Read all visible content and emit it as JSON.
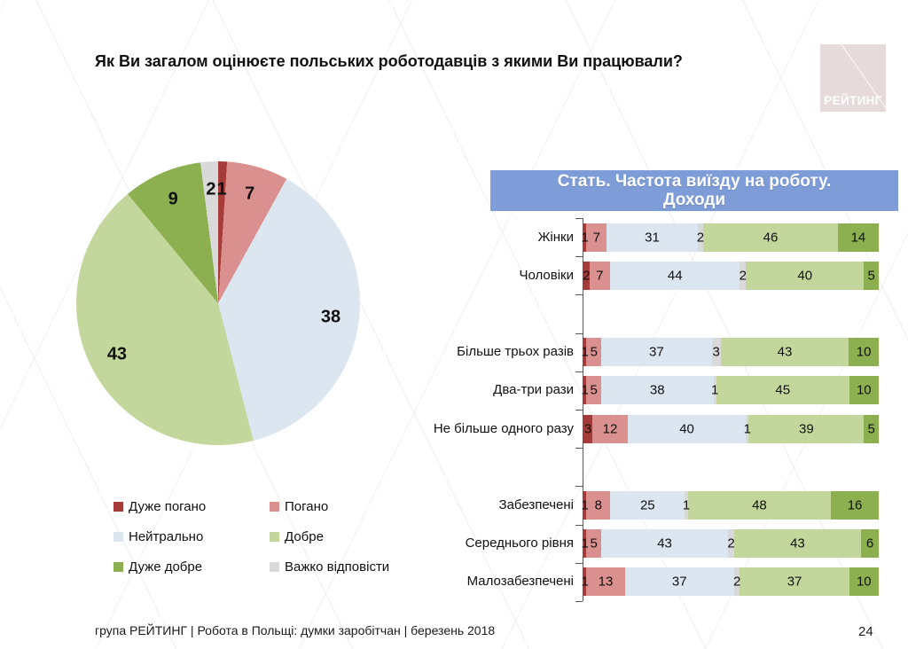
{
  "slide": {
    "title": "Як Ви загалом оцінюєте польських роботодавців з якими Ви працювали?",
    "footer": "група РЕЙТИНГ | Робота в Польщі: думки заробітчан | березень 2018",
    "page_number": "24",
    "logo_text": "РЕЙТИНГ"
  },
  "colors": {
    "very_bad": "#A53C3A",
    "bad": "#D9908E",
    "neutral": "#DCE6F1",
    "good": "#C3D69B",
    "very_good": "#8CB04F",
    "hard_to_say": "#D9D9D9",
    "header_bg": "#7E9DD8",
    "logo_bg": "#E7DADA",
    "axis": "#595959"
  },
  "section_header": {
    "line1": "Стать. Частота виїзду на роботу.",
    "line2": "Доходи"
  },
  "legend": [
    {
      "label": "Дуже погано",
      "color_key": "very_bad"
    },
    {
      "label": "Погано",
      "color_key": "bad"
    },
    {
      "label": "Нейтрально",
      "color_key": "neutral"
    },
    {
      "label": "Добре",
      "color_key": "good"
    },
    {
      "label": "Дуже добре",
      "color_key": "very_good"
    },
    {
      "label": "Важко відповісти",
      "color_key": "hard_to_say"
    }
  ],
  "chart_data": [
    {
      "type": "pie",
      "title": "Як Ви загалом оцінюєте польських роботодавців з якими Ви працювали?",
      "start_angle_deg": 0,
      "direction": "clockwise",
      "slices": [
        {
          "label": "Дуже погано",
          "value": 1,
          "color_key": "very_bad"
        },
        {
          "label": "Погано",
          "value": 7,
          "color_key": "bad"
        },
        {
          "label": "Нейтрально",
          "value": 38,
          "color_key": "neutral"
        },
        {
          "label": "Добре",
          "value": 43,
          "color_key": "good"
        },
        {
          "label": "Дуже добре",
          "value": 9,
          "color_key": "very_good"
        },
        {
          "label": "Важко відповісти",
          "value": 2,
          "color_key": "hard_to_say"
        }
      ]
    },
    {
      "type": "bar",
      "subtype": "stacked-horizontal-100pct",
      "title": "Стать. Частота виїзду на роботу. Доходи",
      "legend_position": "none",
      "series_order_color_keys": [
        "very_bad",
        "bad",
        "neutral",
        "hard_to_say",
        "good",
        "very_good"
      ],
      "series_order_labels": [
        "Дуже погано",
        "Погано",
        "Нейтрально",
        "Важко відповісти",
        "Добре",
        "Дуже добре"
      ],
      "xlim": [
        0,
        100
      ],
      "groups": [
        {
          "rows": [
            {
              "category": "Жінки",
              "values": [
                1,
                7,
                31,
                2,
                46,
                14
              ]
            },
            {
              "category": "Чоловіки",
              "values": [
                2,
                7,
                44,
                2,
                40,
                5
              ]
            }
          ]
        },
        {
          "rows": [
            {
              "category": "Більше трьох разів",
              "values": [
                1,
                5,
                37,
                3,
                43,
                10
              ]
            },
            {
              "category": "Два-три рази",
              "values": [
                1,
                5,
                38,
                1,
                45,
                10
              ]
            },
            {
              "category": "Не більше одного разу",
              "values": [
                3,
                12,
                40,
                1,
                39,
                5
              ]
            }
          ]
        },
        {
          "rows": [
            {
              "category": "Забезпечені",
              "values": [
                1,
                8,
                25,
                1,
                48,
                16
              ]
            },
            {
              "category": "Середнього рівня",
              "values": [
                1,
                5,
                43,
                2,
                43,
                6
              ]
            },
            {
              "category": "Малозабезпечені",
              "values": [
                1,
                13,
                37,
                2,
                37,
                10
              ]
            }
          ]
        }
      ]
    }
  ]
}
